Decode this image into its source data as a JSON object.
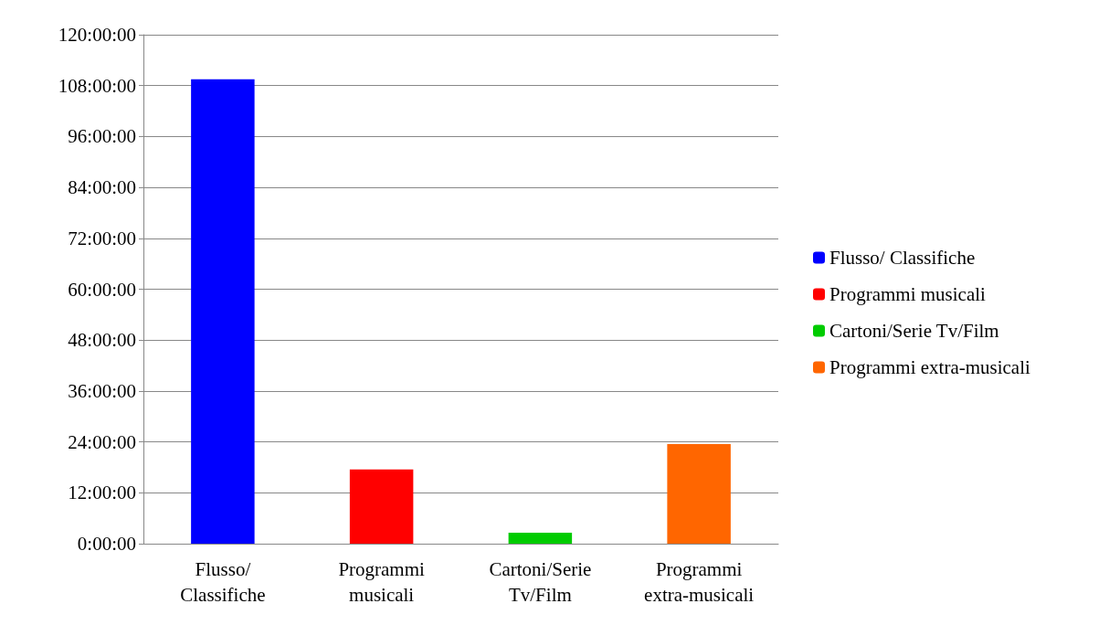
{
  "chart_data": {
    "type": "bar",
    "categories": [
      "Flusso/ Classifiche",
      "Programmi musicali",
      "Cartoni/Serie Tv/Film",
      "Programmi extra-musicali"
    ],
    "series": [
      {
        "name": "Flusso/ Classifiche",
        "color": "#0000ff",
        "values": [
          109.5,
          null,
          null,
          null
        ]
      },
      {
        "name": "Programmi musicali",
        "color": "#ff0000",
        "values": [
          null,
          17.5,
          null,
          null
        ]
      },
      {
        "name": "Cartoni/Serie Tv/Film",
        "color": "#00cc00",
        "values": [
          null,
          null,
          2.6,
          null
        ]
      },
      {
        "name": "Programmi extra-musicali",
        "color": "#ff6600",
        "values": [
          null,
          null,
          null,
          23.5
        ]
      }
    ],
    "stacked": true,
    "ylim": [
      0,
      120
    ],
    "yticks": [
      {
        "value": 0,
        "label": "0:00:00"
      },
      {
        "value": 12,
        "label": "12:00:00"
      },
      {
        "value": 24,
        "label": "24:00:00"
      },
      {
        "value": 36,
        "label": "36:00:00"
      },
      {
        "value": 48,
        "label": "48:00:00"
      },
      {
        "value": 60,
        "label": "60:00:00"
      },
      {
        "value": 72,
        "label": "72:00:00"
      },
      {
        "value": 84,
        "label": "84:00:00"
      },
      {
        "value": 96,
        "label": "96:00:00"
      },
      {
        "value": 108,
        "label": "108:00:00"
      },
      {
        "value": 120,
        "label": "120:00:00"
      }
    ],
    "grid": "y",
    "legend": "right"
  }
}
